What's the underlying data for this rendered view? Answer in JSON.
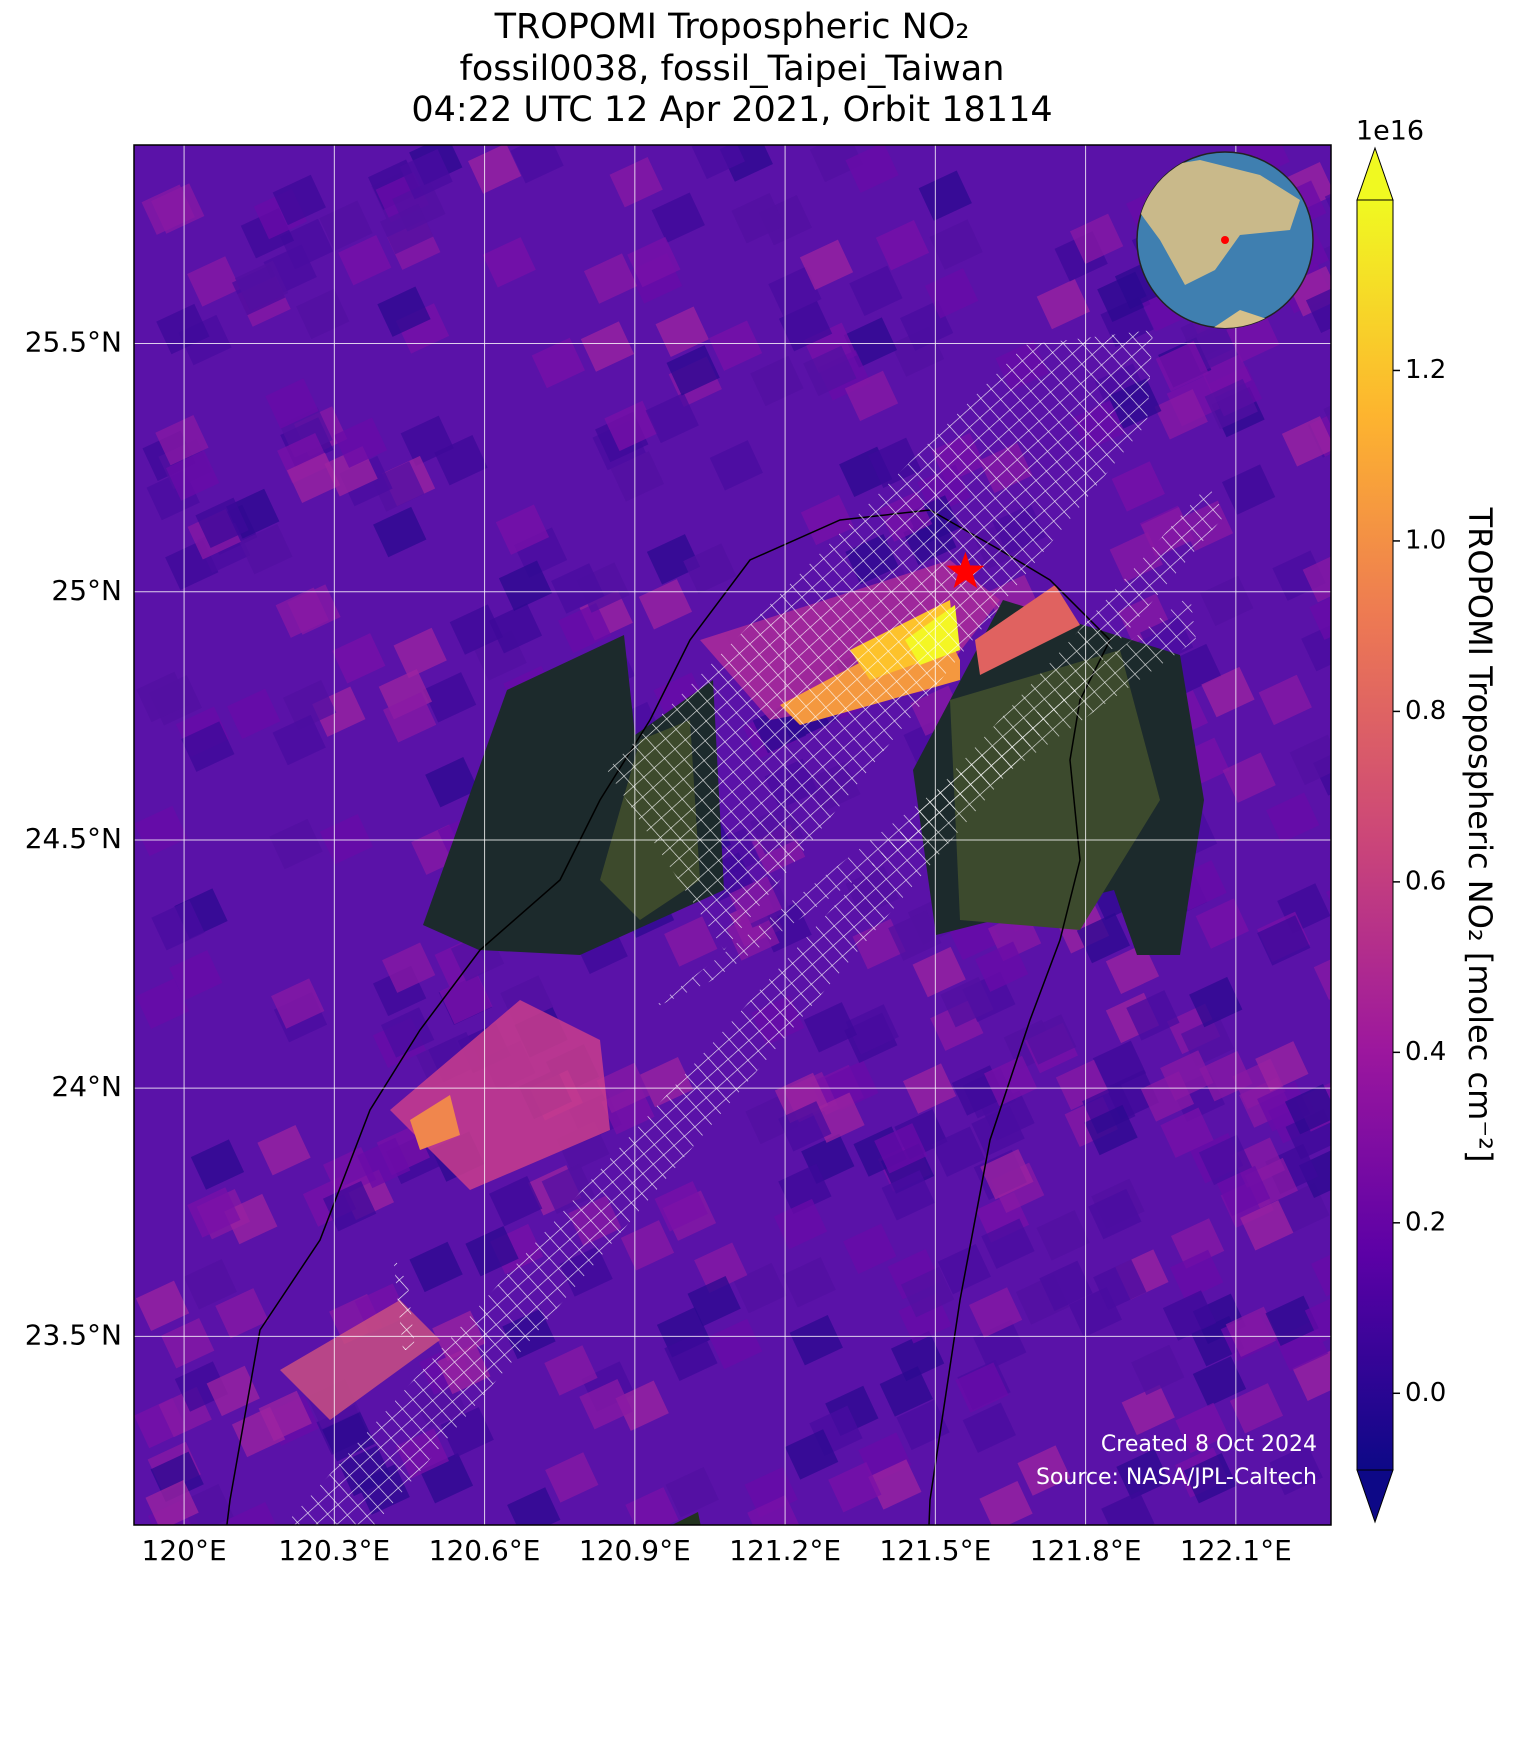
{
  "map": {
    "title": [
      "TROPOMI Tropospheric NO₂",
      "fossil0038, fossil_Taipei_Taiwan",
      "04:22 UTC 12 Apr 2021, Orbit 18114"
    ],
    "xlim": [
      119.9,
      122.29
    ],
    "ylim": [
      23.12,
      25.9
    ],
    "xticks": [
      {
        "value": 120,
        "label": "120°E"
      },
      {
        "value": 120.3,
        "label": "120.3°E"
      },
      {
        "value": 120.6,
        "label": "120.6°E"
      },
      {
        "value": 120.9,
        "label": "120.9°E"
      },
      {
        "value": 121.2,
        "label": "121.2°E"
      },
      {
        "value": 121.5,
        "label": "121.5°E"
      },
      {
        "value": 121.8,
        "label": "121.8°E"
      },
      {
        "value": 122.1,
        "label": "122.1°E"
      }
    ],
    "yticks": [
      {
        "value": 23.5,
        "label": "23.5°N"
      },
      {
        "value": 24,
        "label": "24°N"
      },
      {
        "value": 24.5,
        "label": "24.5°N"
      },
      {
        "value": 25,
        "label": "25°N"
      },
      {
        "value": 25.5,
        "label": "25.5°N"
      }
    ],
    "grid": true,
    "site": {
      "lon": 121.56,
      "lat": 25.04,
      "color": "#ff0000"
    },
    "colorbar": {
      "label": "TROPOMI Tropospheric NO₂ [molec cm⁻²]",
      "multiplier": "1e16",
      "lim": [
        -0.09,
        1.4
      ],
      "ticks": [
        {
          "value": 0,
          "label": "0.0"
        },
        {
          "value": 0.2,
          "label": "0.2"
        },
        {
          "value": 0.4,
          "label": "0.4"
        },
        {
          "value": 0.6,
          "label": "0.6"
        },
        {
          "value": 0.8,
          "label": "0.8"
        },
        {
          "value": 1,
          "label": "1.0"
        },
        {
          "value": 1.2,
          "label": "1.2"
        }
      ]
    },
    "footer": [
      "Created 8 Oct 2024",
      "Source: NASA/JPL-Caltech"
    ]
  }
}
